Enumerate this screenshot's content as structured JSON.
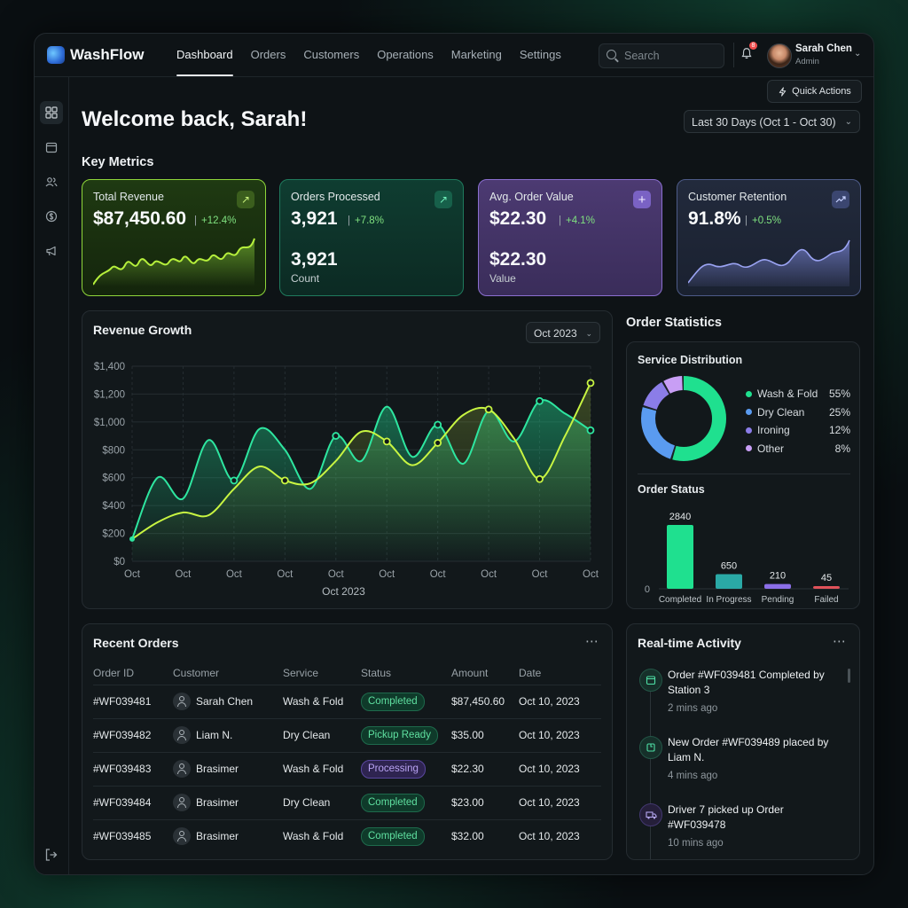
{
  "brand": {
    "name": "WashFlow"
  },
  "nav": {
    "items": [
      {
        "label": "Dashboard",
        "active": true
      },
      {
        "label": "Orders",
        "active": false
      },
      {
        "label": "Customers",
        "active": false
      },
      {
        "label": "Operations",
        "active": false
      },
      {
        "label": "Marketing",
        "active": false
      },
      {
        "label": "Settings",
        "active": false
      }
    ]
  },
  "search": {
    "placeholder": "Search",
    "value": ""
  },
  "notifications": {
    "count": "8"
  },
  "user": {
    "name": "Sarah Chen",
    "role": "Admin"
  },
  "sidebar": {
    "icons": [
      "grid-icon",
      "calendar-icon",
      "users-icon",
      "dollar-icon",
      "megaphone-icon"
    ],
    "bottom_icon": "logout-icon"
  },
  "header": {
    "quick_actions": "Quick Actions",
    "welcome": "Welcome back, Sarah!",
    "date_range": "Last 30 Days (Oct 1 - Oct 30)"
  },
  "key_metrics": {
    "title": "Key Metrics",
    "cards": [
      {
        "label": "Total Revenue",
        "value": "$87,450.60",
        "delta": "+12.4%",
        "icon": "arrow-up-right-icon",
        "accent": "#8fd63a"
      },
      {
        "label": "Orders Processed",
        "value": "3,921",
        "delta": "+7.8%",
        "icon": "arrow-up-right-icon",
        "sub_value": "3,921",
        "sub_label": "Count",
        "accent": "#1f7a5d"
      },
      {
        "label": "Avg. Order Value",
        "value": "$22.30",
        "delta": "+4.1%",
        "icon": "plus-icon",
        "sub_value": "$22.30",
        "sub_label": "Value",
        "accent": "#8b6fd0"
      },
      {
        "label": "Customer Retention",
        "value": "91.8%",
        "delta": "+0.5%",
        "icon": "trend-up-icon",
        "accent": "#4d5b88"
      }
    ]
  },
  "revenue_growth": {
    "title": "Revenue Growth",
    "month_select": "Oct 2023"
  },
  "chart_data": [
    {
      "type": "area",
      "title": "Revenue Growth",
      "xlabel": "Oct 2023",
      "x_tick_labels": [
        "Oct",
        "Oct",
        "Oct",
        "Oct",
        "Oct",
        "Oct",
        "Oct",
        "Oct",
        "Oct",
        "Oct"
      ],
      "y_tick_labels": [
        "$0",
        "$200",
        "$400",
        "$600",
        "$800",
        "$1,000",
        "$1,200",
        "$1,400"
      ],
      "ylim": [
        0,
        1400
      ],
      "grid": true,
      "series": [
        {
          "color": "#2ee6a0",
          "x": [
            0,
            0.5,
            1,
            1.5,
            2,
            2.5,
            3,
            3.5,
            4,
            4.5,
            5,
            5.5,
            6,
            6.5,
            7,
            7.5,
            8,
            8.5,
            9
          ],
          "values": [
            160,
            600,
            450,
            870,
            580,
            950,
            800,
            520,
            900,
            720,
            1110,
            750,
            980,
            700,
            1080,
            860,
            1150,
            1060,
            940
          ],
          "markers_at": [
            2,
            4,
            6,
            8,
            9
          ]
        },
        {
          "color": "#c8f542",
          "x": [
            0,
            0.5,
            1,
            1.5,
            2,
            2.5,
            3,
            3.5,
            4,
            4.5,
            5,
            5.5,
            6,
            6.5,
            7,
            7.5,
            8,
            8.5,
            9
          ],
          "values": [
            160,
            280,
            350,
            330,
            520,
            680,
            580,
            560,
            720,
            930,
            860,
            690,
            850,
            1050,
            1090,
            880,
            590,
            900,
            1280
          ],
          "markers_at": [
            3,
            5,
            6,
            7,
            8,
            9
          ]
        }
      ]
    },
    {
      "type": "pie",
      "title": "Service Distribution",
      "categories": [
        "Wash & Fold",
        "Dry Clean",
        "Ironing",
        "Other"
      ],
      "values": [
        55,
        25,
        12,
        8
      ],
      "labels": [
        "55%",
        "25%",
        "12%",
        "8%"
      ],
      "colors": [
        "#1fe08f",
        "#5a9bf0",
        "#8b7de8",
        "#c89ef5"
      ]
    },
    {
      "type": "bar",
      "title": "Order Status",
      "categories": [
        "Completed",
        "In Progress",
        "Pending",
        "Failed"
      ],
      "values": [
        2840,
        650,
        210,
        45
      ],
      "labels": [
        "2840",
        "650",
        "210",
        "45"
      ],
      "y_tick_labels": [
        "0"
      ],
      "colors": [
        "#1fe08f",
        "#2aa9a6",
        "#8b6fe8",
        "#e0525a"
      ]
    }
  ],
  "order_statistics": {
    "title": "Order Statistics",
    "service_distribution": "Service Distribution",
    "order_status": "Order Status"
  },
  "recent_orders": {
    "title": "Recent Orders",
    "columns": [
      "Order ID",
      "Customer",
      "Service",
      "Status",
      "Amount",
      "Date"
    ],
    "rows": [
      {
        "id": "#WF039481",
        "customer": "Sarah Chen",
        "service": "Wash & Fold",
        "status": "Completed",
        "status_kind": "completed",
        "amount": "$87,450.60",
        "date": "Oct 10, 2023"
      },
      {
        "id": "#WF039482",
        "customer": "Liam N.",
        "service": "Dry Clean",
        "status": "Pickup Ready",
        "status_kind": "pickup",
        "amount": "$35.00",
        "date": "Oct 10, 2023"
      },
      {
        "id": "#WF039483",
        "customer": "Brasimer",
        "service": "Wash & Fold",
        "status": "Processing",
        "status_kind": "processing",
        "amount": "$22.30",
        "date": "Oct 10, 2023"
      },
      {
        "id": "#WF039484",
        "customer": "Brasimer",
        "service": "Dry Clean",
        "status": "Completed",
        "status_kind": "completed",
        "amount": "$23.00",
        "date": "Oct 10, 2023"
      },
      {
        "id": "#WF039485",
        "customer": "Brasimer",
        "service": "Wash & Fold",
        "status": "Completed",
        "status_kind": "completed",
        "amount": "$32.00",
        "date": "Oct 10, 2023"
      }
    ]
  },
  "activity": {
    "title": "Real-time Activity",
    "items": [
      {
        "icon": "calendar-icon",
        "title": "Order #WF039481 Completed by Station 3",
        "time": "2 mins ago"
      },
      {
        "icon": "box-icon",
        "title": "New Order #WF039489 placed by Liam N.",
        "time": "4 mins ago"
      },
      {
        "icon": "truck-icon",
        "title": "Driver 7 picked up Order #WF039478",
        "time": "10 mins ago"
      }
    ]
  }
}
